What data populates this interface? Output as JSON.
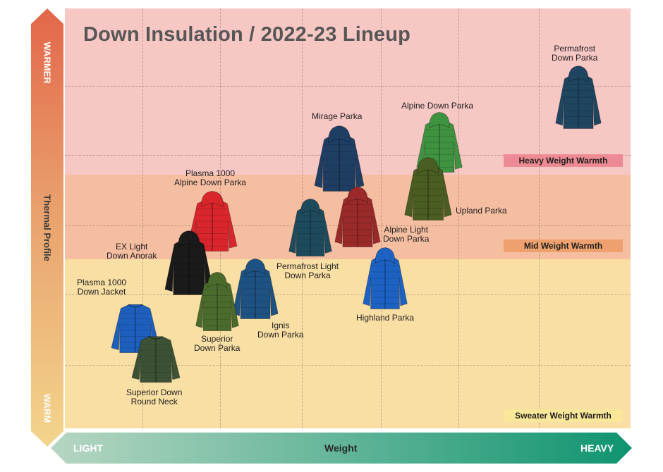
{
  "title": "Down Insulation / 2022-23 Lineup",
  "y_axis": {
    "top_label": "WARMER",
    "middle_label": "Thermal Profile",
    "bottom_label": "WARM"
  },
  "x_axis": {
    "left_label": "LIGHT",
    "middle_label": "Weight",
    "right_label": "HEAVY"
  },
  "zones": [
    {
      "label": "Heavy Weight Warmth",
      "color": "#f7c7c4"
    },
    {
      "label": "Mid Weight Warmth",
      "color": "#f6bea1"
    },
    {
      "label": "Sweater Weight Warmth",
      "color": "#f9dfa4"
    }
  ],
  "products": [
    {
      "line1": "Permafrost",
      "line2": "Down Parka",
      "color": "#1f4560",
      "icon": "dark-jacket-icon"
    },
    {
      "line1": "Alpine Down Parka",
      "line2": "",
      "color": "#3e9240",
      "icon": "jacket-icon"
    },
    {
      "line1": "Mirage Parka",
      "line2": "",
      "color": "#1f3e64",
      "icon": "jacket-icon"
    },
    {
      "line1": "Upland Parka",
      "line2": "",
      "color": "#4a5d22",
      "icon": "jacket-icon"
    },
    {
      "line1": "Plasma 1000",
      "line2": "Alpine Down Parka",
      "color": "#d8262c",
      "icon": "jacket-icon"
    },
    {
      "line1": "Permafrost Light",
      "line2": "Down Parka",
      "color": "#1d4a5c",
      "icon": "jacket-icon"
    },
    {
      "line1": "Alpine Light",
      "line2": "Down Parka",
      "color": "#9a2a2a",
      "icon": "jacket-icon"
    },
    {
      "line1": "EX Light",
      "line2": "Down Anorak",
      "color": "#1a1a1a",
      "icon": "jacket-icon"
    },
    {
      "line1": "Highland Parka",
      "line2": "",
      "color": "#1d62c2",
      "icon": "jacket-icon"
    },
    {
      "line1": "Plasma 1000",
      "line2": "Down Jacket",
      "color": "#1e5fbe",
      "icon": "jacket-icon"
    },
    {
      "line1": "Ignis",
      "line2": "Down Parka",
      "color": "#1e5283",
      "icon": "jacket-icon"
    },
    {
      "line1": "Superior",
      "line2": "Down Parka",
      "color": "#4b6b2d",
      "icon": "jacket-icon"
    },
    {
      "line1": "Superior Down",
      "line2": "Round Neck",
      "color": "#3c5236",
      "icon": "jacket-icon"
    }
  ]
}
